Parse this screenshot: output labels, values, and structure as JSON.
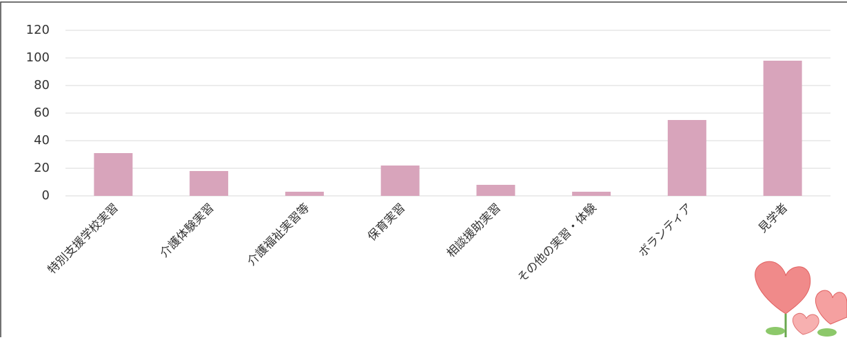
{
  "chart_data": {
    "type": "bar",
    "categories": [
      "特別支援学校実習",
      "介護体験実習",
      "介護福祉実習等",
      "保育実習",
      "相談援助実習",
      "その他の実習・体験",
      "ボランティア",
      "見学者"
    ],
    "values": [
      31,
      18,
      3,
      22,
      8,
      3,
      55,
      98
    ],
    "color": "#d8a4bb",
    "ylim": [
      0,
      120
    ],
    "yticks": [
      0,
      20,
      40,
      60,
      80,
      100,
      120
    ],
    "grid": true
  }
}
